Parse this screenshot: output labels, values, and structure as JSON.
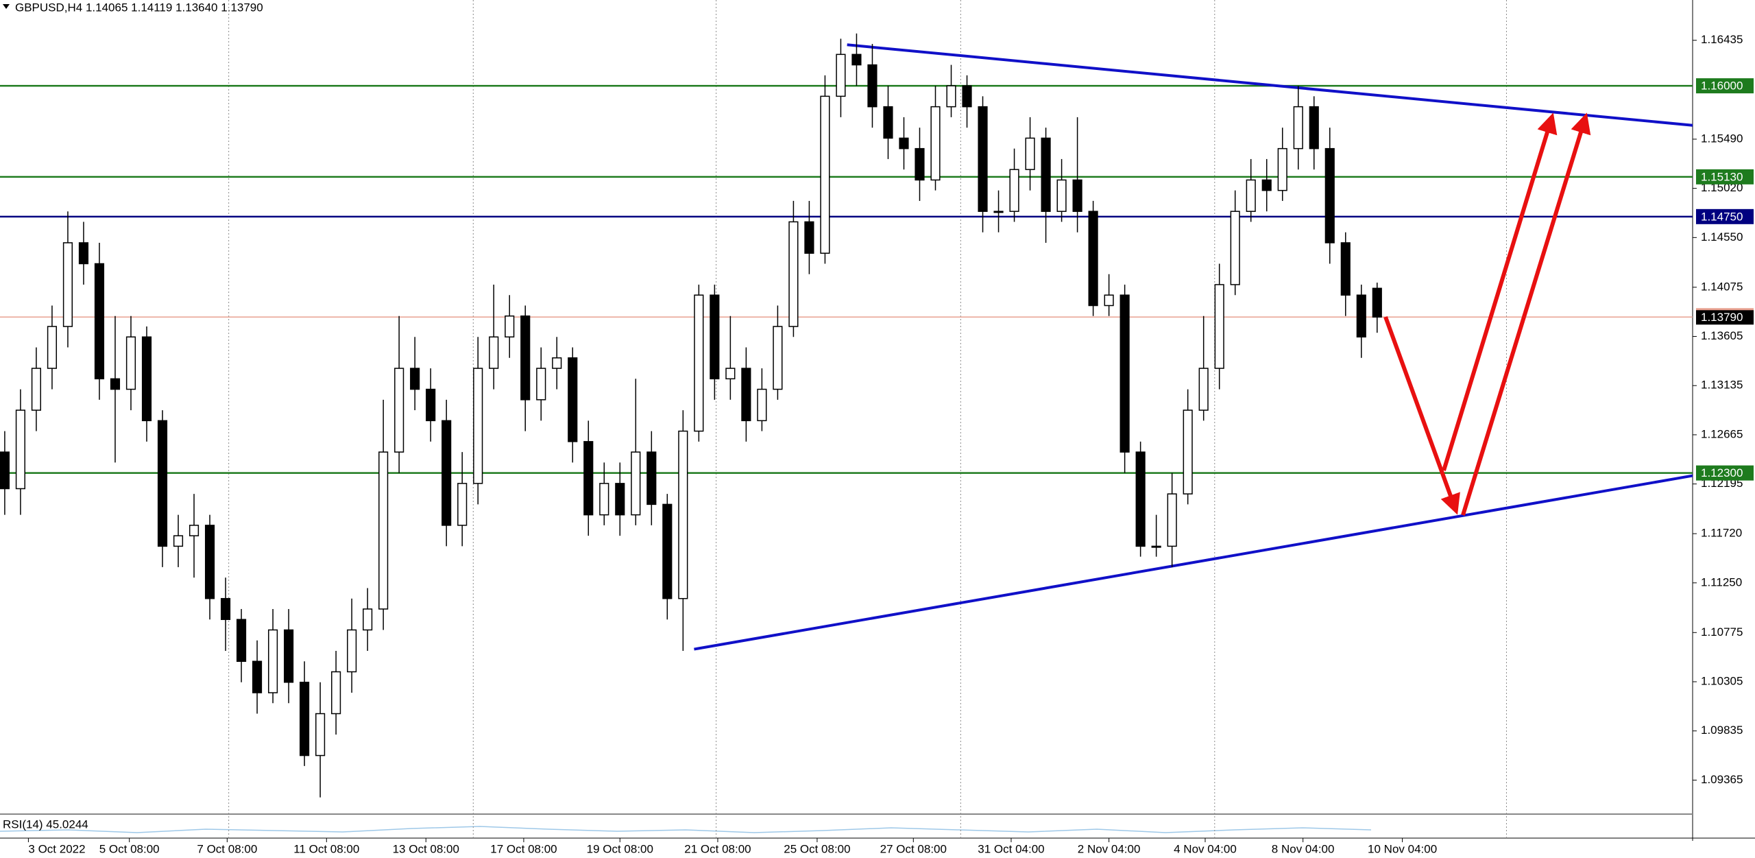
{
  "chart_data": {
    "type": "candlestick",
    "title": "GBPUSD,H4  1.14065 1.14119 1.13640 1.13790",
    "indicator": "RSI(14) 45.0244",
    "open": [
      1.125,
      1.1215,
      1.129,
      1.133,
      1.137,
      1.145,
      1.143,
      1.132,
      1.131,
      1.136,
      1.128,
      1.116,
      1.117,
      1.118,
      1.111,
      1.109,
      1.105,
      1.102,
      1.108,
      1.103,
      1.096,
      1.1,
      1.104,
      1.108,
      1.11,
      1.125,
      1.133,
      1.131,
      1.128,
      1.118,
      1.122,
      1.133,
      1.136,
      1.138,
      1.13,
      1.133,
      1.134,
      1.126,
      1.119,
      1.122,
      1.119,
      1.125,
      1.12,
      1.111,
      1.127,
      1.14,
      1.132,
      1.133,
      1.128,
      1.131,
      1.137,
      1.147,
      1.144,
      1.159,
      1.163,
      1.162,
      1.158,
      1.155,
      1.154,
      1.151,
      1.158,
      1.16,
      1.158,
      1.148,
      1.148,
      1.152,
      1.155,
      1.148,
      1.151,
      1.148,
      1.139,
      1.14,
      1.125,
      1.116,
      1.116,
      1.121,
      1.129,
      1.133,
      1.141,
      1.148,
      1.151,
      1.15,
      1.154,
      1.158,
      1.154,
      1.145,
      1.14,
      1.14065
    ],
    "high": [
      1.127,
      1.131,
      1.135,
      1.139,
      1.148,
      1.147,
      1.145,
      1.138,
      1.138,
      1.137,
      1.129,
      1.119,
      1.121,
      1.119,
      1.113,
      1.11,
      1.107,
      1.11,
      1.11,
      1.105,
      1.103,
      1.106,
      1.111,
      1.112,
      1.13,
      1.138,
      1.136,
      1.133,
      1.13,
      1.125,
      1.136,
      1.141,
      1.14,
      1.139,
      1.135,
      1.136,
      1.135,
      1.128,
      1.124,
      1.124,
      1.132,
      1.127,
      1.121,
      1.129,
      1.141,
      1.141,
      1.138,
      1.135,
      1.133,
      1.139,
      1.149,
      1.149,
      1.161,
      1.1645,
      1.165,
      1.164,
      1.16,
      1.157,
      1.156,
      1.16,
      1.162,
      1.161,
      1.159,
      1.15,
      1.154,
      1.157,
      1.156,
      1.153,
      1.157,
      1.149,
      1.142,
      1.141,
      1.126,
      1.119,
      1.123,
      1.131,
      1.138,
      1.143,
      1.15,
      1.153,
      1.153,
      1.156,
      1.16,
      1.159,
      1.156,
      1.146,
      1.141,
      1.14119
    ],
    "low": [
      1.119,
      1.119,
      1.127,
      1.131,
      1.135,
      1.141,
      1.13,
      1.124,
      1.129,
      1.126,
      1.114,
      1.114,
      1.113,
      1.109,
      1.106,
      1.103,
      1.1,
      1.101,
      1.101,
      1.095,
      1.092,
      1.098,
      1.102,
      1.106,
      1.108,
      1.123,
      1.129,
      1.126,
      1.116,
      1.116,
      1.12,
      1.131,
      1.134,
      1.127,
      1.128,
      1.131,
      1.124,
      1.117,
      1.118,
      1.117,
      1.118,
      1.118,
      1.109,
      1.106,
      1.126,
      1.13,
      1.13,
      1.126,
      1.127,
      1.13,
      1.136,
      1.142,
      1.143,
      1.157,
      1.16,
      1.156,
      1.153,
      1.152,
      1.149,
      1.15,
      1.157,
      1.156,
      1.146,
      1.146,
      1.147,
      1.15,
      1.145,
      1.147,
      1.146,
      1.138,
      1.138,
      1.123,
      1.115,
      1.115,
      1.114,
      1.12,
      1.128,
      1.131,
      1.14,
      1.147,
      1.148,
      1.149,
      1.152,
      1.152,
      1.143,
      1.138,
      1.134,
      1.1364
    ],
    "close": [
      1.1215,
      1.129,
      1.133,
      1.137,
      1.145,
      1.143,
      1.132,
      1.131,
      1.136,
      1.128,
      1.116,
      1.117,
      1.118,
      1.111,
      1.109,
      1.105,
      1.102,
      1.108,
      1.103,
      1.096,
      1.1,
      1.104,
      1.108,
      1.11,
      1.125,
      1.133,
      1.131,
      1.128,
      1.118,
      1.122,
      1.133,
      1.136,
      1.138,
      1.13,
      1.133,
      1.134,
      1.126,
      1.119,
      1.122,
      1.119,
      1.125,
      1.12,
      1.111,
      1.127,
      1.14,
      1.132,
      1.133,
      1.128,
      1.131,
      1.137,
      1.147,
      1.144,
      1.159,
      1.163,
      1.162,
      1.158,
      1.155,
      1.154,
      1.151,
      1.158,
      1.16,
      1.158,
      1.148,
      1.148,
      1.152,
      1.155,
      1.148,
      1.151,
      1.148,
      1.139,
      1.14,
      1.125,
      1.116,
      1.116,
      1.121,
      1.129,
      1.133,
      1.141,
      1.148,
      1.151,
      1.15,
      1.154,
      1.158,
      1.154,
      1.145,
      1.14,
      1.136,
      1.1379
    ],
    "xlim": [
      -0.3,
      107
    ],
    "xticks": [
      {
        "value": 1.5,
        "label": "3 Oct 2022"
      },
      {
        "value": 7.9,
        "label": "5 Oct 08:00"
      },
      {
        "value": 14.1,
        "label": "7 Oct 08:00"
      },
      {
        "value": 20.4,
        "label": "11 Oct 08:00"
      },
      {
        "value": 26.7,
        "label": "13 Oct 08:00"
      },
      {
        "value": 32.9,
        "label": "17 Oct 08:00"
      },
      {
        "value": 39.0,
        "label": "19 Oct 08:00"
      },
      {
        "value": 45.2,
        "label": "21 Oct 08:00"
      },
      {
        "value": 51.5,
        "label": "25 Oct 08:00"
      },
      {
        "value": 57.6,
        "label": "27 Oct 08:00"
      },
      {
        "value": 63.8,
        "label": "31 Oct 04:00"
      },
      {
        "value": 70.0,
        "label": "2 Nov 04:00"
      },
      {
        "value": 76.1,
        "label": "4 Nov 04:00"
      },
      {
        "value": 82.3,
        "label": "8 Nov 04:00"
      },
      {
        "value": 88.6,
        "label": "10 Nov 04:00"
      }
    ],
    "xgrid": [
      14.2,
      29.7,
      45.1,
      60.6,
      76.7,
      95.2
    ],
    "ylim": [
      1.0904,
      1.1682
    ],
    "yticks": [
      1.16435,
      {
        "value": 1.1549,
        "label": "1.15490"
      },
      {
        "value": 1.1502,
        "label": "1.15020"
      },
      {
        "value": 1.1455,
        "label": "1.14550"
      },
      1.14075,
      1.13605,
      1.13135,
      1.12665,
      1.12195,
      {
        "value": 1.1172,
        "label": "1.11720"
      },
      {
        "value": 1.1125,
        "label": "1.11250"
      },
      1.10775,
      1.10305,
      1.09835,
      1.09365
    ],
    "levels": [
      {
        "value": 1.16,
        "label": "1.16000",
        "color": "#1e7b1e"
      },
      {
        "value": 1.1513,
        "label": "1.15130",
        "color": "#1e7b1e"
      },
      {
        "value": 1.1475,
        "label": "1.14750",
        "color": "#000080"
      },
      {
        "value": 1.123,
        "label": "1.12300",
        "color": "#1e7b1e"
      }
    ],
    "price": {
      "value": 1.1379,
      "label": "1.13790",
      "color": "#e8a090"
    },
    "trendlines": [
      {
        "x": [
          53.4,
          107
        ],
        "y": [
          1.16392,
          1.15622
        ],
        "color": "#1010c8"
      },
      {
        "x": [
          43.7,
          107
        ],
        "y": [
          1.10616,
          1.12274
        ],
        "color": "#1010c8"
      }
    ]
  }
}
